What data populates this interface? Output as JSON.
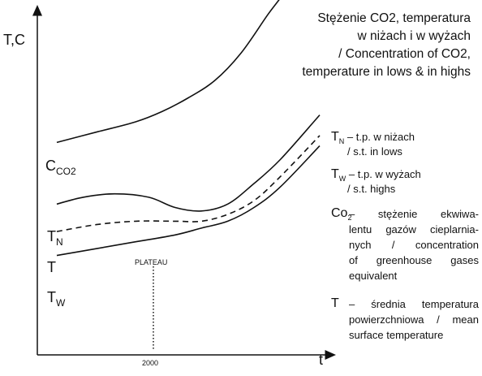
{
  "title_lines": [
    "Stężenie CO2, temperatura",
    "w niżach i w wyżach",
    "/ Concentration of CO2,",
    "temperature in lows & in highs"
  ],
  "chart_data": {
    "type": "line",
    "xlabel": "t",
    "ylabel": "T,C",
    "grid": false,
    "x_tick": "2000",
    "plateau_label": "PLATEAU",
    "series": [
      {
        "key": "co2",
        "label_main": "C",
        "label_sub": "CO2",
        "style": "solid",
        "points": [
          [
            0,
            0.62
          ],
          [
            0.15,
            0.65
          ],
          [
            0.3,
            0.68
          ],
          [
            0.4,
            0.71
          ],
          [
            0.5,
            0.75
          ],
          [
            0.6,
            0.8
          ],
          [
            0.7,
            0.88
          ],
          [
            0.8,
            0.99
          ],
          [
            0.9,
            1.1
          ],
          [
            1.0,
            1.28
          ]
        ]
      },
      {
        "key": "tn",
        "label_main": "T",
        "label_sub": "N",
        "style": "solid",
        "points": [
          [
            0,
            0.44
          ],
          [
            0.1,
            0.46
          ],
          [
            0.22,
            0.47
          ],
          [
            0.35,
            0.46
          ],
          [
            0.45,
            0.43
          ],
          [
            0.55,
            0.42
          ],
          [
            0.65,
            0.44
          ],
          [
            0.75,
            0.5
          ],
          [
            0.85,
            0.57
          ],
          [
            1.0,
            0.7
          ]
        ]
      },
      {
        "key": "t",
        "label_main": "T",
        "label_sub": "",
        "style": "dashed",
        "points": [
          [
            0,
            0.36
          ],
          [
            0.15,
            0.38
          ],
          [
            0.3,
            0.39
          ],
          [
            0.45,
            0.39
          ],
          [
            0.55,
            0.39
          ],
          [
            0.65,
            0.41
          ],
          [
            0.75,
            0.45
          ],
          [
            0.85,
            0.52
          ],
          [
            1.0,
            0.64
          ]
        ]
      },
      {
        "key": "tw",
        "label_main": "T",
        "label_sub": "W",
        "style": "solid",
        "points": [
          [
            0,
            0.29
          ],
          [
            0.15,
            0.31
          ],
          [
            0.3,
            0.33
          ],
          [
            0.45,
            0.35
          ],
          [
            0.55,
            0.37
          ],
          [
            0.65,
            0.39
          ],
          [
            0.75,
            0.43
          ],
          [
            0.85,
            0.49
          ],
          [
            1.0,
            0.61
          ]
        ]
      }
    ]
  },
  "legend": [
    {
      "sym_main": "T",
      "sym_sub": "N",
      "lines": [
        "– t.p. w niżach",
        "/ s.t. in lows"
      ]
    },
    {
      "sym_main": "T",
      "sym_sub": "W",
      "lines": [
        "– t.p. w wyżach",
        "/ s.t. highs"
      ]
    },
    {
      "sym_main": "Co",
      "sym_sub": "2",
      "lines": [
        "– stężenie ekwiwa-",
        "lentu gazów cieplarnia-",
        "nych / concentration",
        "of greenhouse gases",
        "equivalent"
      ]
    },
    {
      "sym_main": "T",
      "sym_sub": "",
      "lines": [
        "– średnia temperatura",
        "powierzchniowa / mean",
        "surface temperature"
      ]
    }
  ]
}
